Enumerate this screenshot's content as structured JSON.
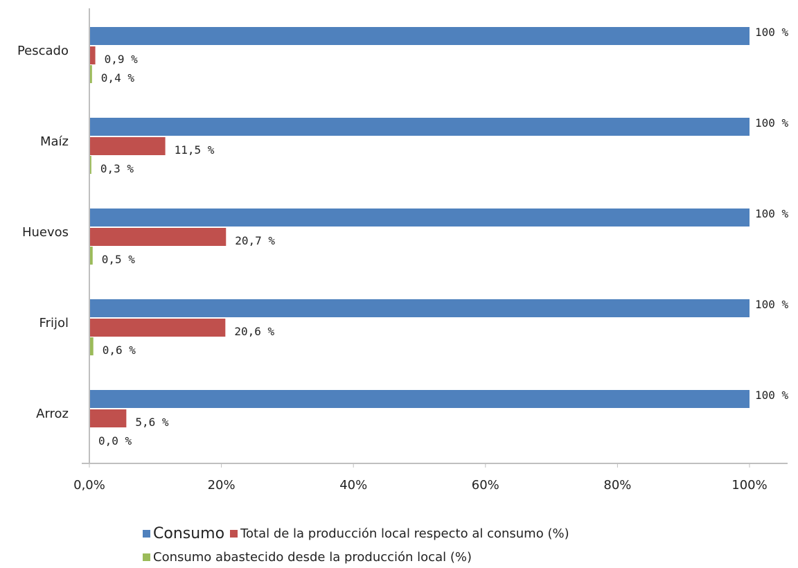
{
  "chart_data": {
    "type": "bar",
    "orientation": "horizontal",
    "categories": [
      "Pescado",
      "Maíz",
      "Huevos",
      "Frijol",
      "Arroz"
    ],
    "series": [
      {
        "name": "Consumo",
        "color": "#4F81BD",
        "values": [
          100,
          100,
          100,
          100,
          100
        ],
        "labels": [
          "100 %",
          "100 %",
          "100 %",
          "100 %",
          "100 %"
        ]
      },
      {
        "name": "Total de la producción local respecto al consumo (%)",
        "color": "#C0504D",
        "values": [
          0.9,
          11.5,
          20.7,
          20.6,
          5.6
        ],
        "labels": [
          "0,9 %",
          "11,5 %",
          "20,7 %",
          "20,6 %",
          "5,6 %"
        ]
      },
      {
        "name": "Consumo abastecido desde la producción local (%)",
        "color": "#9BBB59",
        "values": [
          0.4,
          0.3,
          0.5,
          0.6,
          0.0
        ],
        "labels": [
          "0,4 %",
          "0,3 %",
          "0,5 %",
          "0,6 %",
          "0,0 %"
        ]
      }
    ],
    "xlim": [
      0,
      100
    ],
    "xticks": [
      0,
      20,
      40,
      60,
      80,
      100
    ],
    "xtick_labels": [
      "0,0%",
      "20%",
      "40%",
      "60%",
      "80%",
      "100%"
    ],
    "grid": false,
    "legend_position": "bottom",
    "title": "",
    "xlabel": "",
    "ylabel": ""
  }
}
